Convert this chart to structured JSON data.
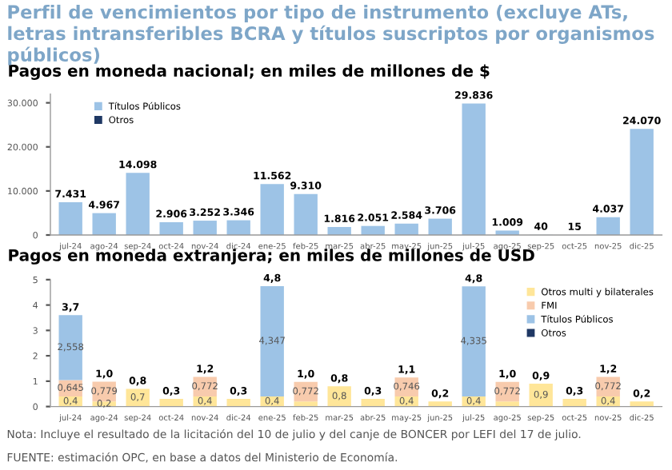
{
  "chart_data": [
    {
      "type": "bar",
      "title": "Perfil de vencimientos por tipo de instrumento (excluye ATs, letras intransferibles BCRA y títulos suscriptos por organismos públicos)",
      "subtitle": "Pagos en moneda nacional; en miles de millones de $",
      "categories": [
        "jul-24",
        "ago-24",
        "sep-24",
        "oct-24",
        "nov-24",
        "dic-24",
        "ene-25",
        "feb-25",
        "mar-25",
        "abr-25",
        "may-25",
        "jun-25",
        "jul-25",
        "ago-25",
        "sep-25",
        "oct-25",
        "nov-25",
        "dic-25"
      ],
      "stacked": true,
      "series": [
        {
          "name": "Títulos Públicos",
          "color": "#9dc3e6",
          "values": [
            7431,
            4967,
            14098,
            2906,
            3252,
            3346,
            11562,
            9310,
            1816,
            2051,
            2584,
            3706,
            29836,
            1009,
            40,
            15,
            4037,
            24070
          ]
        },
        {
          "name": "Otros",
          "color": "#1f3864",
          "values": [
            null,
            null,
            null,
            null,
            null,
            null,
            null,
            null,
            null,
            null,
            null,
            null,
            null,
            null,
            null,
            null,
            null,
            null
          ]
        }
      ],
      "totals": [
        "7.431",
        "4.967",
        "14.098",
        "2.906",
        "3.252",
        "3.346",
        "11.562",
        "9.310",
        "1.816",
        "2.051",
        "2.584",
        "3.706",
        "29.836",
        "1.009",
        "40",
        "15",
        "4.037",
        "24.070"
      ],
      "ylim": [
        0,
        32000
      ],
      "yticks": [
        0,
        {
          "value": 10000,
          "label": "10.000"
        },
        {
          "value": 20000,
          "label": "20.000"
        },
        {
          "value": 30000,
          "label": "30.000"
        }
      ],
      "grid": false,
      "legend": "top left"
    },
    {
      "type": "bar",
      "subtitle": "Pagos en moneda extranjera; en miles de millones de USD",
      "categories": [
        "jul-24",
        "ago-24",
        "sep-24",
        "oct-24",
        "nov-24",
        "dic-24",
        "ene-25",
        "feb-25",
        "mar-25",
        "abr-25",
        "may-25",
        "jun-25",
        "jul-25",
        "ago-25",
        "sep-25",
        "oct-25",
        "nov-25",
        "dic-25"
      ],
      "stacked": true,
      "series": [
        {
          "name": "Otros multi y bilaterales",
          "color": "#ffe699",
          "values": [
            0.4,
            0.2,
            0.7,
            0.3,
            0.4,
            0.3,
            0.4,
            0.2,
            0.8,
            0.3,
            0.4,
            0.2,
            0.4,
            0.2,
            0.9,
            0.3,
            0.4,
            0.2
          ],
          "value_labels": [
            "0,4",
            "0,2",
            "0,7",
            null,
            "0,4",
            null,
            "0,4",
            null,
            "0,8",
            null,
            "0,4",
            null,
            "0,4",
            null,
            "0,9",
            null,
            "0,4",
            null
          ]
        },
        {
          "name": "FMI",
          "color": "#f8cbad",
          "values": [
            0.645,
            0.779,
            null,
            null,
            0.772,
            null,
            null,
            0.772,
            null,
            null,
            0.746,
            null,
            null,
            0.772,
            null,
            null,
            0.772,
            null
          ],
          "value_labels": [
            "0,645",
            "0,779",
            null,
            null,
            "0,772",
            null,
            null,
            "0,772",
            null,
            null,
            "0,746",
            null,
            null,
            "0,772",
            null,
            null,
            "0,772",
            null
          ]
        },
        {
          "name": "Títulos Públicos",
          "color": "#9dc3e6",
          "values": [
            2.558,
            null,
            null,
            null,
            null,
            null,
            4.347,
            null,
            null,
            null,
            null,
            null,
            4.335,
            null,
            null,
            null,
            null,
            null
          ],
          "value_labels": [
            "2,558",
            null,
            null,
            null,
            null,
            null,
            "4,347",
            null,
            null,
            null,
            null,
            null,
            "4,335",
            null,
            null,
            null,
            null,
            null
          ]
        },
        {
          "name": "Otros",
          "color": "#1f3864",
          "values": [
            null,
            null,
            null,
            null,
            null,
            null,
            null,
            null,
            null,
            null,
            null,
            null,
            null,
            null,
            null,
            null,
            null,
            null
          ]
        }
      ],
      "totals": [
        "3,7",
        "1,0",
        "0,8",
        "0,3",
        "1,2",
        "0,3",
        "4,8",
        "1,0",
        "0,8",
        "0,3",
        "1,1",
        "0,2",
        "4,8",
        "1,0",
        "0,9",
        "0,3",
        "1,2",
        "0,2"
      ],
      "ylim": [
        0,
        5
      ],
      "yticks": [
        0,
        1,
        2,
        3,
        4,
        5
      ],
      "grid": false,
      "legend": "top right",
      "annotations": [
        "Nota: Incluye el resultado de la licitación del 10 de julio y del canje de BONCER por LEFI del 17 de julio.",
        "FUENTE: estimación OPC, en base a datos del Ministerio de Economía."
      ]
    }
  ]
}
